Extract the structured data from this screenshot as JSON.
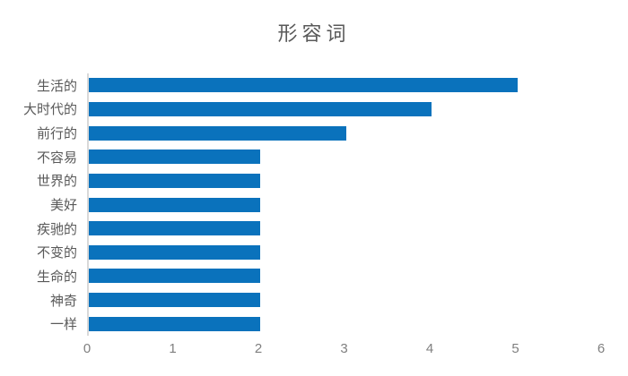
{
  "chart_data": {
    "type": "bar",
    "orientation": "horizontal",
    "title": "形容词",
    "categories": [
      "生活的",
      "大时代的",
      "前行的",
      "不容易",
      "世界的",
      "美好",
      "疾驰的",
      "不变的",
      "生命的",
      "神奇",
      "一样"
    ],
    "values": [
      5,
      4,
      3,
      2,
      2,
      2,
      2,
      2,
      2,
      2,
      2
    ],
    "xlabel": "",
    "ylabel": "",
    "xlim": [
      0,
      6
    ],
    "xticks": [
      0,
      1,
      2,
      3,
      4,
      5,
      6
    ],
    "grid": false,
    "legend": false,
    "colors": {
      "bar": "#0a72bc",
      "title": "#595959",
      "category_labels": "#595959",
      "tick_labels": "#7f7f7f",
      "axis_line": "#d9d9d9",
      "background": "#ffffff"
    }
  }
}
